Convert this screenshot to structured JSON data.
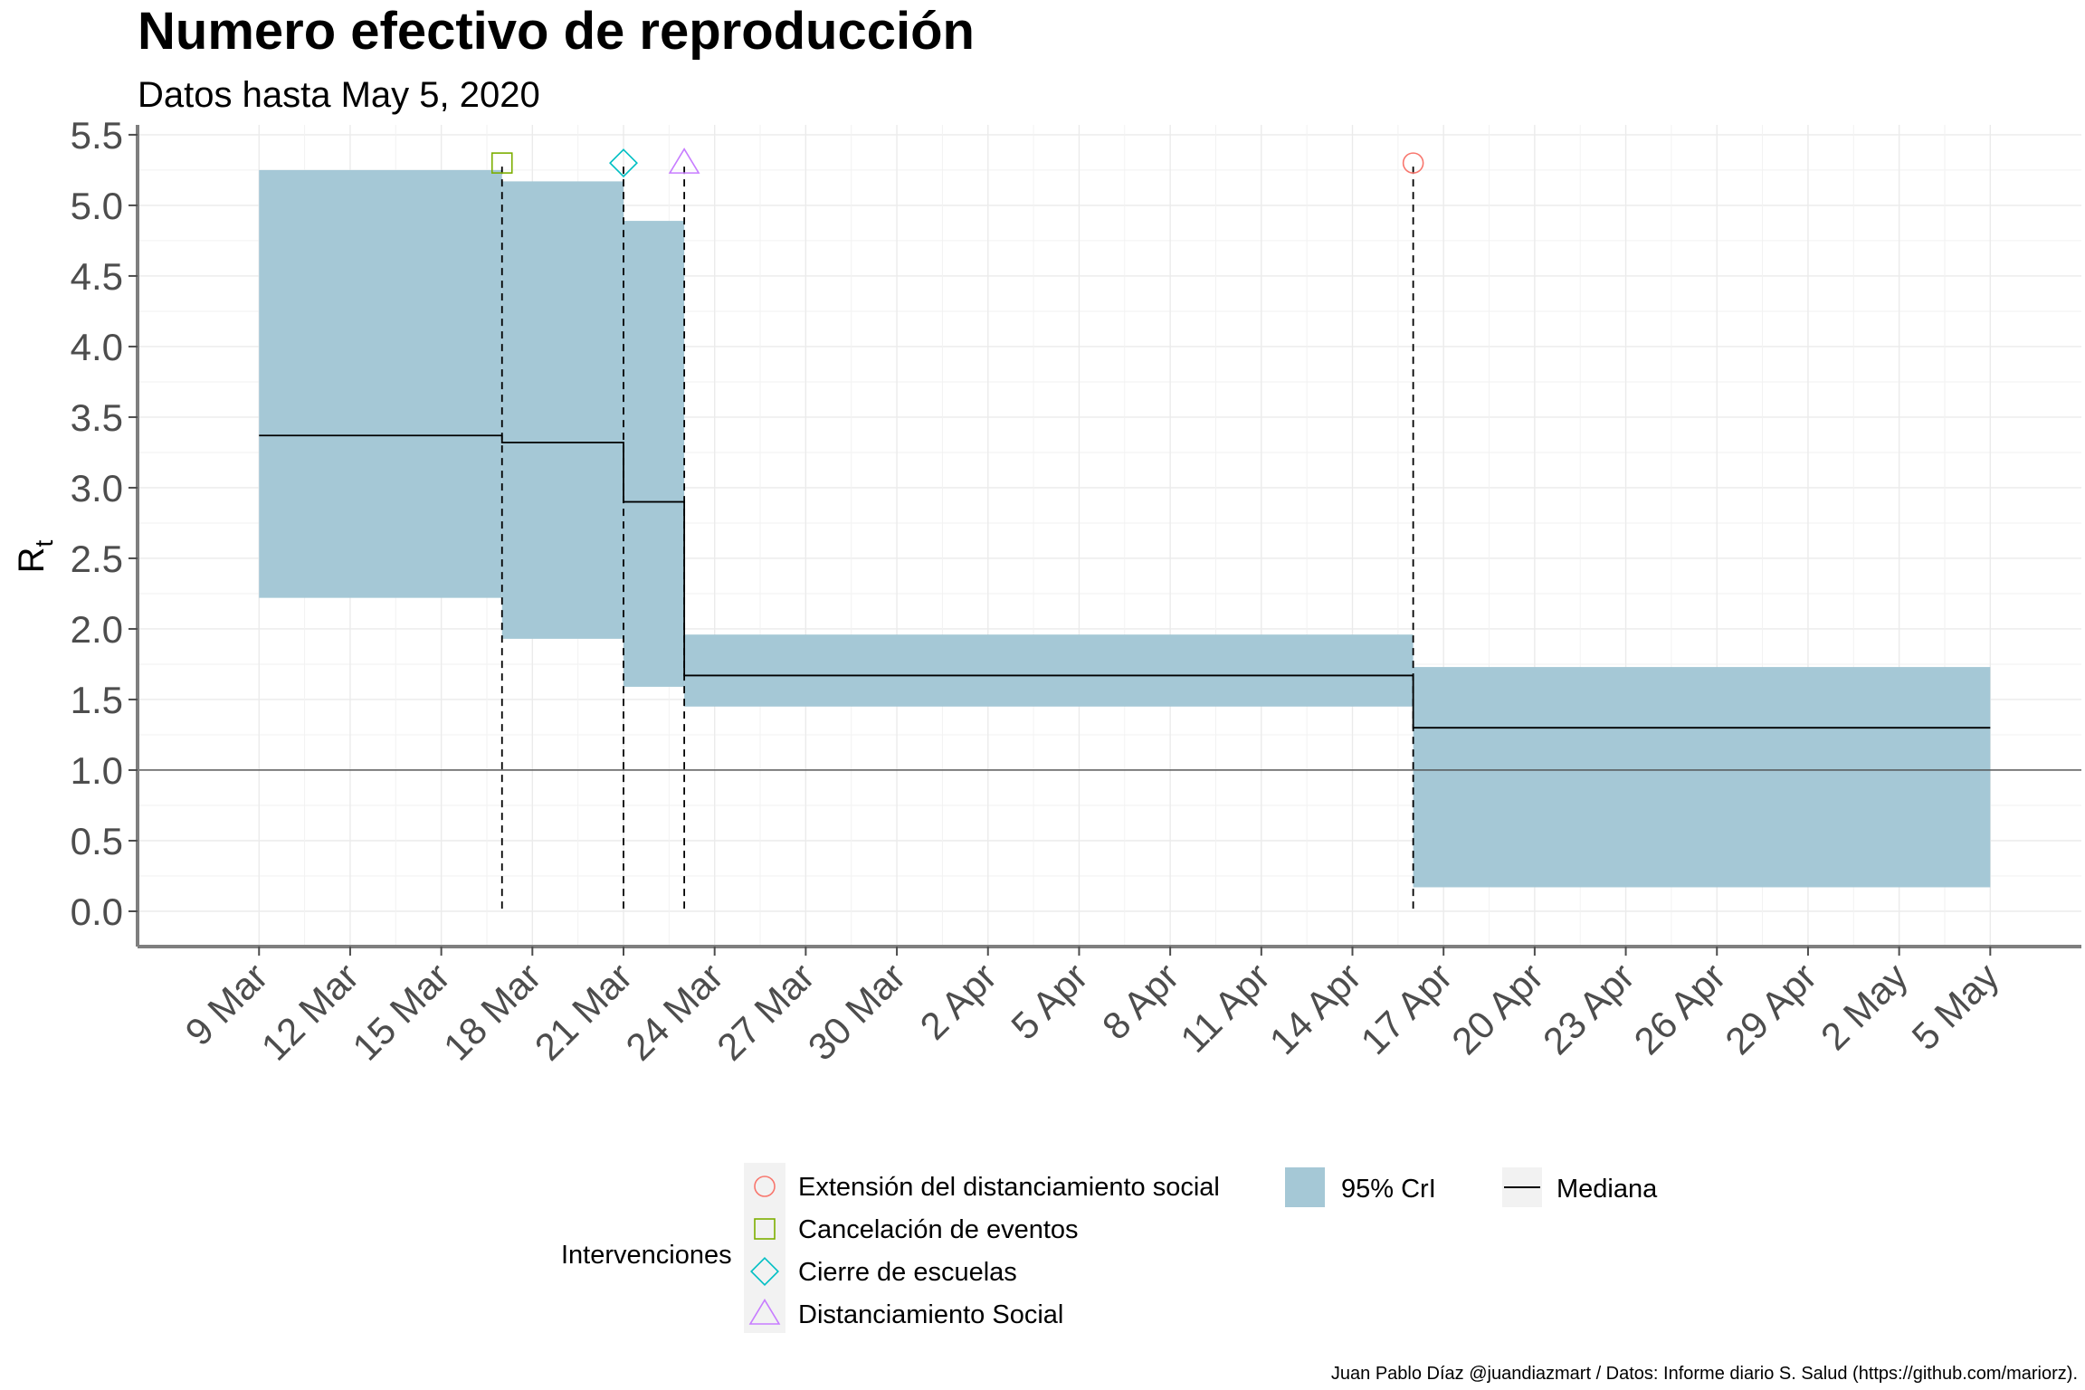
{
  "chart_data": {
    "type": "area",
    "title": "Numero efectivo de reproducción",
    "subtitle": "Datos hasta May  5, 2020",
    "ylabel_main": "R",
    "ylabel_sub": "t",
    "ylim": [
      -0.25,
      5.57
    ],
    "xlim": [
      "2020-03-05",
      "2020-05-08"
    ],
    "grid": true,
    "y_ticks": [
      "0.0",
      "0.5",
      "1.0",
      "1.5",
      "2.0",
      "2.5",
      "3.0",
      "3.5",
      "4.0",
      "4.5",
      "5.0",
      "5.5"
    ],
    "x_ticks": [
      {
        "date": "2020-03-09",
        "label": "9 Mar"
      },
      {
        "date": "2020-03-12",
        "label": "12 Mar"
      },
      {
        "date": "2020-03-15",
        "label": "15 Mar"
      },
      {
        "date": "2020-03-18",
        "label": "18 Mar"
      },
      {
        "date": "2020-03-21",
        "label": "21 Mar"
      },
      {
        "date": "2020-03-24",
        "label": "24 Mar"
      },
      {
        "date": "2020-03-27",
        "label": "27 Mar"
      },
      {
        "date": "2020-03-30",
        "label": "30 Mar"
      },
      {
        "date": "2020-04-02",
        "label": "2 Apr"
      },
      {
        "date": "2020-04-05",
        "label": "5 Apr"
      },
      {
        "date": "2020-04-08",
        "label": "8 Apr"
      },
      {
        "date": "2020-04-11",
        "label": "11 Apr"
      },
      {
        "date": "2020-04-14",
        "label": "14 Apr"
      },
      {
        "date": "2020-04-17",
        "label": "17 Apr"
      },
      {
        "date": "2020-04-20",
        "label": "20 Apr"
      },
      {
        "date": "2020-04-23",
        "label": "23 Apr"
      },
      {
        "date": "2020-04-26",
        "label": "26 Apr"
      },
      {
        "date": "2020-04-29",
        "label": "29 Apr"
      },
      {
        "date": "2020-05-02",
        "label": "2 May"
      },
      {
        "date": "2020-05-05",
        "label": "5 May"
      }
    ],
    "reference_line": 1.0,
    "segments": [
      {
        "start": "2020-03-09",
        "end": "2020-03-17",
        "median": 3.37,
        "lower": 2.22,
        "upper": 5.25
      },
      {
        "start": "2020-03-17",
        "end": "2020-03-21",
        "median": 3.32,
        "lower": 1.93,
        "upper": 5.17
      },
      {
        "start": "2020-03-21",
        "end": "2020-03-23",
        "median": 2.9,
        "lower": 1.59,
        "upper": 4.89
      },
      {
        "start": "2020-03-23",
        "end": "2020-04-16",
        "median": 1.67,
        "lower": 1.45,
        "upper": 1.96
      },
      {
        "start": "2020-04-16",
        "end": "2020-05-05",
        "median": 1.3,
        "lower": 0.17,
        "upper": 1.73
      }
    ],
    "interventions": [
      {
        "date": "2020-03-17",
        "name": "Cancelación de eventos",
        "shape": "square",
        "color": "#7CAE00"
      },
      {
        "date": "2020-03-21",
        "name": "Cierre de escuelas",
        "shape": "diamond",
        "color": "#00BFC4"
      },
      {
        "date": "2020-03-23",
        "name": "Distanciamiento Social",
        "shape": "triangle",
        "color": "#C77CFF"
      },
      {
        "date": "2020-04-16",
        "name": "Extensión del distanciamiento social",
        "shape": "circle",
        "color": "#F8766D"
      }
    ],
    "marker_y": 5.3,
    "ribbon_color": "#a5c8d6",
    "legend_placement": "bottom",
    "legend": {
      "interventions_title": "Intervenciones",
      "interventions_order": [
        {
          "label": "Extensión del distanciamiento social",
          "shape": "circle",
          "color": "#F8766D"
        },
        {
          "label": "Cancelación de eventos",
          "shape": "square",
          "color": "#7CAE00"
        },
        {
          "label": "Cierre de escuelas",
          "shape": "diamond",
          "color": "#00BFC4"
        },
        {
          "label": "Distanciamiento Social",
          "shape": "triangle",
          "color": "#C77CFF"
        }
      ],
      "ci_label": "95% CrI",
      "median_label": "Mediana"
    },
    "caption": "Juan Pablo Díaz @juandiazmart / Datos: Informe diario S. Salud (https://github.com/mariorz)."
  }
}
